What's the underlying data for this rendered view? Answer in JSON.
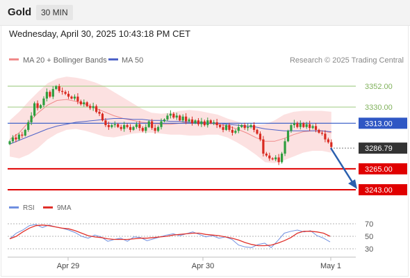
{
  "header": {
    "symbol": "Gold",
    "timeframe": "30 MIN",
    "timestamp": "Wednesday, April 30, 2025 10:43:18 PM CET"
  },
  "legend": {
    "ma20_bb": "MA 20 + Bollinger Bands",
    "ma50": "MA 50",
    "attribution": "Research © 2025 Trading Central",
    "rsi": "RSI",
    "rsi_ma": "9MA"
  },
  "colors": {
    "candle_up": "#2e9e3e",
    "candle_down": "#d92a20",
    "bollinger_fill": "#fbd9d9",
    "ma20": "#f08a8a",
    "ma50": "#4f63c8",
    "resistance": "#a8d08d",
    "support": "#e00000",
    "pivot": "#2f57c4",
    "forecast_arrow": "#2a5fae",
    "rsi_line": "#6f8fe0",
    "rsi_ma": "#e0302a"
  },
  "chart_data": [
    {
      "type": "candlestick",
      "title": "Gold 30 MIN",
      "x_ticks": [
        "Apr 29",
        "Apr 30",
        "May 1"
      ],
      "ylim": [
        3225,
        3375
      ],
      "levels": [
        {
          "label": "3352.00",
          "value": 3352.0,
          "kind": "resistance"
        },
        {
          "label": "3330.00",
          "value": 3330.0,
          "kind": "resistance"
        },
        {
          "label": "3313.00",
          "value": 3313.0,
          "kind": "pivot"
        },
        {
          "label": "3286.79",
          "value": 3286.79,
          "kind": "last_price"
        },
        {
          "label": "3265.00",
          "value": 3265.0,
          "kind": "support"
        },
        {
          "label": "3243.00",
          "value": 3243.0,
          "kind": "support"
        }
      ],
      "forecast": {
        "from": 3290,
        "to": 3243
      },
      "closes": [
        3294,
        3298,
        3296,
        3301,
        3300,
        3306,
        3314,
        3321,
        3334,
        3329,
        3332,
        3339,
        3346,
        3341,
        3349,
        3352,
        3347,
        3346,
        3344,
        3341,
        3339,
        3341,
        3336,
        3333,
        3335,
        3331,
        3329,
        3331,
        3325,
        3323,
        3316,
        3311,
        3309,
        3311,
        3312,
        3309,
        3307,
        3311,
        3309,
        3306,
        3309,
        3312,
        3308,
        3305,
        3309,
        3315,
        3308,
        3305,
        3309,
        3315,
        3317,
        3321,
        3323,
        3319,
        3321,
        3316,
        3320,
        3315,
        3317,
        3313,
        3316,
        3312,
        3315,
        3311,
        3316,
        3313,
        3314,
        3311,
        3309,
        3306,
        3311,
        3306,
        3303,
        3305,
        3309,
        3311,
        3308,
        3309,
        3311,
        3306,
        3302,
        3296,
        3281,
        3279,
        3276,
        3275,
        3277,
        3272,
        3281,
        3294,
        3305,
        3311,
        3313,
        3309,
        3313,
        3309,
        3312,
        3308,
        3310,
        3306,
        3303,
        3302,
        3296,
        3293,
        3288
      ],
      "bollinger_upper": [
        3316,
        3325,
        3336,
        3346,
        3355,
        3360,
        3362,
        3361,
        3359,
        3356,
        3352,
        3346,
        3340,
        3334,
        3328,
        3324,
        3323,
        3324,
        3326,
        3327,
        3326,
        3324,
        3322,
        3318,
        3315,
        3312,
        3311,
        3312,
        3316,
        3322,
        3325,
        3326,
        3326,
        3326,
        3325
      ],
      "bollinger_lower": [
        3278,
        3276,
        3280,
        3287,
        3296,
        3302,
        3306,
        3307,
        3305,
        3302,
        3299,
        3298,
        3300,
        3302,
        3303,
        3303,
        3302,
        3301,
        3301,
        3300,
        3300,
        3301,
        3301,
        3298,
        3293,
        3287,
        3280,
        3272,
        3271,
        3274,
        3278,
        3282,
        3284,
        3284,
        3282
      ],
      "ma20": [
        3296,
        3303,
        3314,
        3324,
        3332,
        3337,
        3338,
        3336,
        3333,
        3329,
        3325,
        3321,
        3318,
        3316,
        3314,
        3313,
        3312,
        3312,
        3313,
        3314,
        3314,
        3313,
        3312,
        3310,
        3307,
        3303,
        3298,
        3294,
        3294,
        3297,
        3301,
        3304,
        3305,
        3305,
        3303
      ],
      "ma50": [
        3291,
        3295,
        3299,
        3303,
        3307,
        3310,
        3312,
        3314,
        3315,
        3316,
        3317,
        3318,
        3318,
        3317,
        3317,
        3316,
        3316,
        3315,
        3315,
        3314,
        3314,
        3313,
        3313,
        3312,
        3311,
        3310,
        3309,
        3307,
        3306,
        3305,
        3305,
        3305,
        3305,
        3305,
        3304
      ]
    },
    {
      "type": "line",
      "title": "RSI",
      "ylim": [
        20,
        80
      ],
      "y_ticks": [
        "70",
        "50",
        "30"
      ],
      "series": [
        {
          "name": "RSI",
          "values": [
            46,
            55,
            60,
            67,
            69,
            64,
            68,
            65,
            63,
            60,
            56,
            50,
            47,
            52,
            49,
            42,
            45,
            47,
            42,
            49,
            48,
            43,
            46,
            49,
            52,
            54,
            51,
            54,
            57,
            53,
            49,
            51,
            47,
            49,
            45,
            36,
            33,
            32,
            37,
            39,
            32,
            43,
            55,
            58,
            60,
            57,
            59,
            51,
            47,
            41
          ]
        },
        {
          "name": "9MA",
          "values": [
            46,
            50,
            57,
            63,
            67,
            68,
            67,
            65,
            63,
            62,
            59,
            55,
            51,
            49,
            48,
            46,
            45,
            45,
            45,
            46,
            47,
            47,
            48,
            49,
            50,
            52,
            53,
            54,
            55,
            55,
            53,
            52,
            51,
            49,
            47,
            44,
            40,
            37,
            35,
            35,
            36,
            39,
            43,
            48,
            55,
            58,
            58,
            57,
            55,
            50
          ]
        }
      ]
    }
  ]
}
